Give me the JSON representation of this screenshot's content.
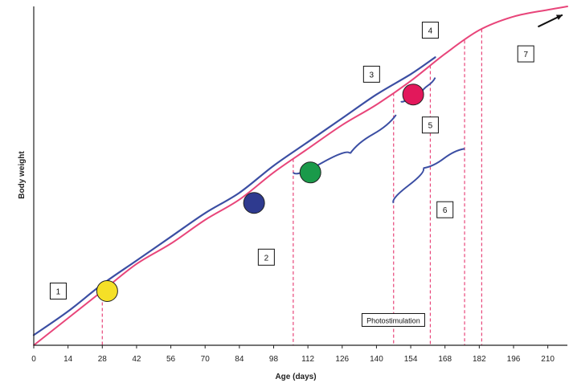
{
  "chart_data": {
    "type": "line",
    "title": "",
    "xlabel": "Age (days)",
    "ylabel": "Body weight",
    "xlim": [
      0,
      218
    ],
    "ylim": [
      0,
      100
    ],
    "x_ticks": [
      0,
      14,
      28,
      42,
      56,
      70,
      84,
      98,
      112,
      126,
      140,
      154,
      168,
      182,
      196,
      210
    ],
    "grid": false,
    "series": [
      {
        "color": "#e8457a",
        "x": [
          0,
          14,
          28,
          42,
          56,
          70,
          84,
          98,
          112,
          126,
          140,
          154,
          168,
          182,
          196,
          210,
          218
        ],
        "y": [
          0,
          8,
          16,
          24,
          30,
          37,
          43,
          51,
          58,
          65,
          71,
          78,
          86,
          93,
          97,
          99,
          100
        ]
      },
      {
        "color": "#3b4ea3",
        "x": [
          0,
          14,
          28,
          42,
          56,
          70,
          84,
          98,
          112,
          126,
          140,
          154,
          164
        ],
        "y": [
          3,
          10,
          18,
          25,
          32,
          39,
          45,
          53,
          60,
          67,
          74,
          80,
          85
        ]
      }
    ],
    "markers": [
      {
        "x": 30,
        "y": 16,
        "color": "#f5e027"
      },
      {
        "x": 90,
        "y": 42,
        "color": "#2e3a8f"
      },
      {
        "x": 113,
        "y": 51,
        "color": "#1a9a4a"
      },
      {
        "x": 155,
        "y": 74,
        "color": "#e2185b"
      }
    ],
    "dashed_lines": [
      28,
      106,
      147,
      162,
      176,
      183
    ],
    "photostimulation_x": 162,
    "annotations": [
      {
        "label": "1",
        "x": 10,
        "y": 16
      },
      {
        "label": "2",
        "x": 95,
        "y": 26
      },
      {
        "label": "3",
        "x": 138,
        "y": 80
      },
      {
        "label": "4",
        "x": 162,
        "y": 93
      },
      {
        "label": "5",
        "x": 162,
        "y": 65
      },
      {
        "label": "6",
        "x": 168,
        "y": 40
      },
      {
        "label": "7",
        "x": 201,
        "y": 86
      }
    ],
    "photostimulation_label": "Photostimulation"
  }
}
